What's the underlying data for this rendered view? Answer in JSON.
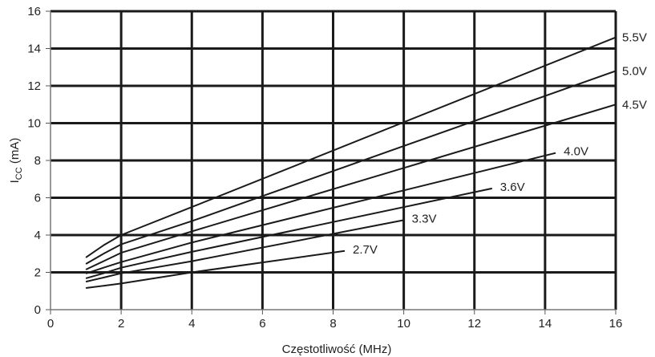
{
  "chart_data": {
    "type": "line",
    "title": "",
    "xlabel": "Częstotliwość (MHz)",
    "ylabel_main": "I",
    "ylabel_sub": "CC",
    "ylabel_unit": " (mA)",
    "xlim": [
      0,
      16
    ],
    "ylim": [
      0,
      16
    ],
    "xticks": [
      0,
      2,
      4,
      6,
      8,
      10,
      12,
      14,
      16
    ],
    "yticks": [
      0,
      2,
      4,
      6,
      8,
      10,
      12,
      14,
      16
    ],
    "grid": true,
    "series": [
      {
        "name": "5.5V",
        "x": [
          1,
          1.5,
          2,
          4,
          16
        ],
        "y": [
          2.8,
          3.45,
          4.0,
          5.5,
          14.6
        ]
      },
      {
        "name": "5.0V",
        "x": [
          1,
          1.5,
          2,
          4,
          16
        ],
        "y": [
          2.45,
          3.0,
          3.5,
          4.75,
          12.8
        ]
      },
      {
        "name": "4.5V",
        "x": [
          1,
          1.5,
          2,
          4,
          16
        ],
        "y": [
          2.15,
          2.6,
          3.05,
          4.2,
          11.0
        ]
      },
      {
        "name": "4.0V",
        "x": [
          1,
          1.5,
          2,
          4,
          14.3
        ],
        "y": [
          1.94,
          2.25,
          2.55,
          3.6,
          8.4
        ]
      },
      {
        "name": "3.6V",
        "x": [
          1,
          1.5,
          2,
          4,
          12.5
        ],
        "y": [
          1.68,
          1.95,
          2.25,
          3.1,
          6.5
        ]
      },
      {
        "name": "3.3V",
        "x": [
          1,
          1.5,
          2,
          4,
          10
        ],
        "y": [
          1.5,
          1.72,
          1.95,
          2.6,
          4.8
        ]
      },
      {
        "name": "2.7V",
        "x": [
          1,
          1.5,
          2,
          4,
          8.33
        ],
        "y": [
          1.16,
          1.28,
          1.4,
          2.0,
          3.15
        ]
      }
    ]
  }
}
